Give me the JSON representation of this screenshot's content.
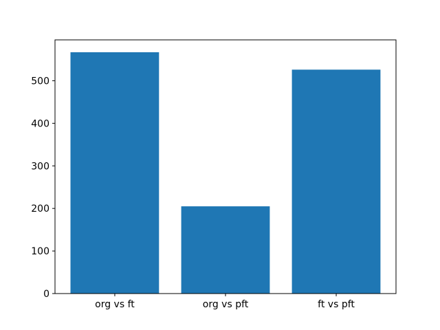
{
  "figure": {
    "background": "#ffffff"
  },
  "chart_data": {
    "type": "bar",
    "title": "",
    "xlabel": "",
    "ylabel": "",
    "categories": [
      "org vs ft",
      "org vs pft",
      "ft vs pft"
    ],
    "values": [
      567,
      205,
      526
    ],
    "x_positions": [
      0,
      1,
      2
    ],
    "bar_width": 0.8,
    "bar_color": "#1f77b4",
    "xlim": [
      -0.54,
      2.54
    ],
    "ylim": [
      0,
      596
    ],
    "yticks": [
      0,
      100,
      200,
      300,
      400,
      500
    ],
    "grid": false,
    "legend": null,
    "spine_color": "#000000",
    "tick_color": "#000000",
    "text_color": "#000000"
  }
}
